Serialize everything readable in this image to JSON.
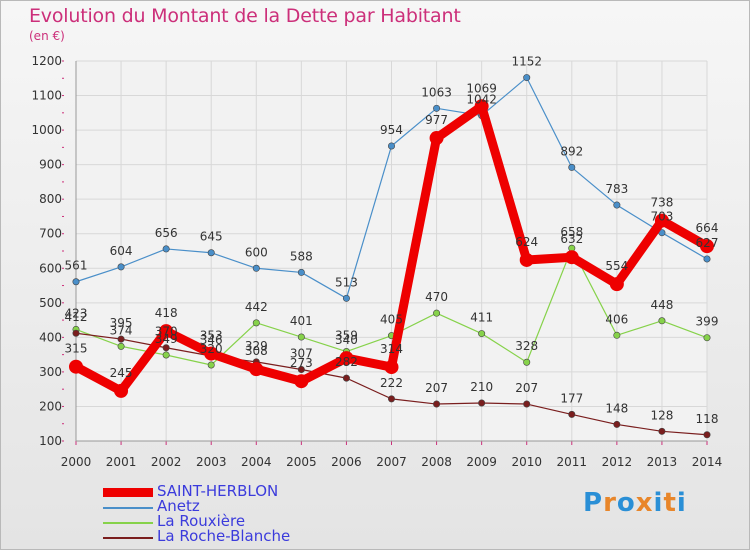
{
  "title": "Evolution du Montant de la Dette par Habitant",
  "unit": "(en €)",
  "brand": {
    "text": "Proxiti",
    "colors": [
      "#2a8fd6",
      "#e8862a",
      "#2a8fd6",
      "#e8862a",
      "#2a8fd6",
      "#e8862a",
      "#2a8fd6"
    ]
  },
  "chart_data": {
    "type": "line",
    "x": [
      "2000",
      "2001",
      "2002",
      "2003",
      "2004",
      "2005",
      "2006",
      "2007",
      "2008",
      "2009",
      "2010",
      "2011",
      "2012",
      "2013",
      "2014"
    ],
    "ylim": [
      100,
      1200
    ],
    "yticks": [
      100,
      200,
      300,
      400,
      500,
      600,
      700,
      800,
      900,
      1000,
      1100,
      1200
    ],
    "grid": true,
    "legend_position": "bottom-left",
    "series": [
      {
        "name": "Anetz",
        "color": "#4a8fc9",
        "values": [
          561,
          604,
          656,
          645,
          600,
          588,
          513,
          954,
          1063,
          1042,
          1152,
          892,
          783,
          703,
          627
        ],
        "labels": [
          "561",
          "604",
          "656",
          "645",
          "600",
          "588",
          "513",
          "954",
          "1063",
          "1042",
          "1152",
          "892",
          "783",
          "703",
          "627"
        ]
      },
      {
        "name": "La Rouxière",
        "color": "#86d24a",
        "values": [
          423,
          374,
          349,
          320,
          442,
          401,
          359,
          405,
          470,
          411,
          328,
          658,
          406,
          448,
          399
        ],
        "labels": [
          "423",
          "374",
          "349",
          "320",
          "442",
          "401",
          "359",
          "405",
          "470",
          "411",
          "328",
          "658",
          "406",
          "448",
          "399"
        ]
      },
      {
        "name": "La Roche-Blanche",
        "color": "#7a1e1e",
        "values": [
          412,
          395,
          370,
          346,
          329,
          307,
          282,
          222,
          207,
          210,
          207,
          177,
          148,
          128,
          118
        ],
        "labels": [
          "412",
          "395",
          "370",
          "346",
          "329",
          "307",
          "282",
          "222",
          "207",
          "210",
          "207",
          "177",
          "148",
          "128",
          "118"
        ]
      },
      {
        "name": "SAINT-HERBLON",
        "color": "#ee0000",
        "values": [
          315,
          245,
          418,
          353,
          308,
          273,
          340,
          314,
          977,
          1069,
          624,
          632,
          554,
          738,
          664
        ],
        "labels": [
          "315",
          "245",
          "418",
          "353",
          "308",
          "273",
          "340",
          "314",
          "977",
          "1069",
          "624",
          "632",
          "554",
          "738",
          "664"
        ]
      }
    ],
    "legend_order": [
      "SAINT-HERBLON",
      "Anetz",
      "La Rouxière",
      "La Roche-Blanche"
    ]
  }
}
